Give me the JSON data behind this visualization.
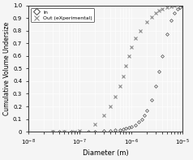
{
  "title": "",
  "xlabel": "Diameter (m)",
  "ylabel": "Cumulative Volume Undersize",
  "xlim_log": [
    -8,
    -5
  ],
  "ylim": [
    0,
    1
  ],
  "yticks": [
    0.0,
    0.1,
    0.2,
    0.3,
    0.4,
    0.5,
    0.6,
    0.7,
    0.8,
    0.9,
    1.0
  ],
  "legend_labels": [
    "In",
    "Out (eXperimental)"
  ],
  "bg_color": "#f5f5f5",
  "grid_color": "#ffffff",
  "marker_color_in": "#444444",
  "marker_color_out": "#888888",
  "in_x": [
    3e-08,
    4e-08,
    5e-08,
    7e-08,
    1e-07,
    1.5e-07,
    2e-07,
    3e-07,
    4e-07,
    5e-07,
    6e-07,
    7e-07,
    8e-07,
    9e-07,
    1e-06,
    1.2e-06,
    1.4e-06,
    1.6e-06,
    1.8e-06,
    2e-06,
    2.5e-06,
    3e-06,
    3.5e-06,
    4e-06,
    5e-06,
    6e-06,
    7e-06,
    8e-06,
    9e-06,
    1e-05
  ],
  "in_y": [
    0.0,
    0.0,
    0.0,
    0.0,
    0.001,
    0.002,
    0.003,
    0.005,
    0.008,
    0.012,
    0.016,
    0.021,
    0.027,
    0.033,
    0.04,
    0.055,
    0.075,
    0.1,
    0.13,
    0.165,
    0.25,
    0.36,
    0.48,
    0.6,
    0.77,
    0.88,
    0.94,
    0.97,
    0.985,
    0.995
  ],
  "out_x": [
    3e-08,
    5e-08,
    8e-08,
    1e-07,
    2e-07,
    3e-07,
    4e-07,
    5e-07,
    6e-07,
    7e-07,
    8e-07,
    9e-07,
    1e-06,
    1.2e-06,
    1.5e-06,
    2e-06,
    2.5e-06,
    3e-06,
    3.5e-06,
    4e-06,
    5e-06,
    6e-06,
    7e-06
  ],
  "out_y": [
    0.0,
    0.0,
    0.0,
    0.01,
    0.06,
    0.13,
    0.2,
    0.28,
    0.36,
    0.44,
    0.52,
    0.6,
    0.67,
    0.74,
    0.8,
    0.87,
    0.91,
    0.94,
    0.96,
    0.975,
    0.988,
    0.994,
    0.999
  ]
}
